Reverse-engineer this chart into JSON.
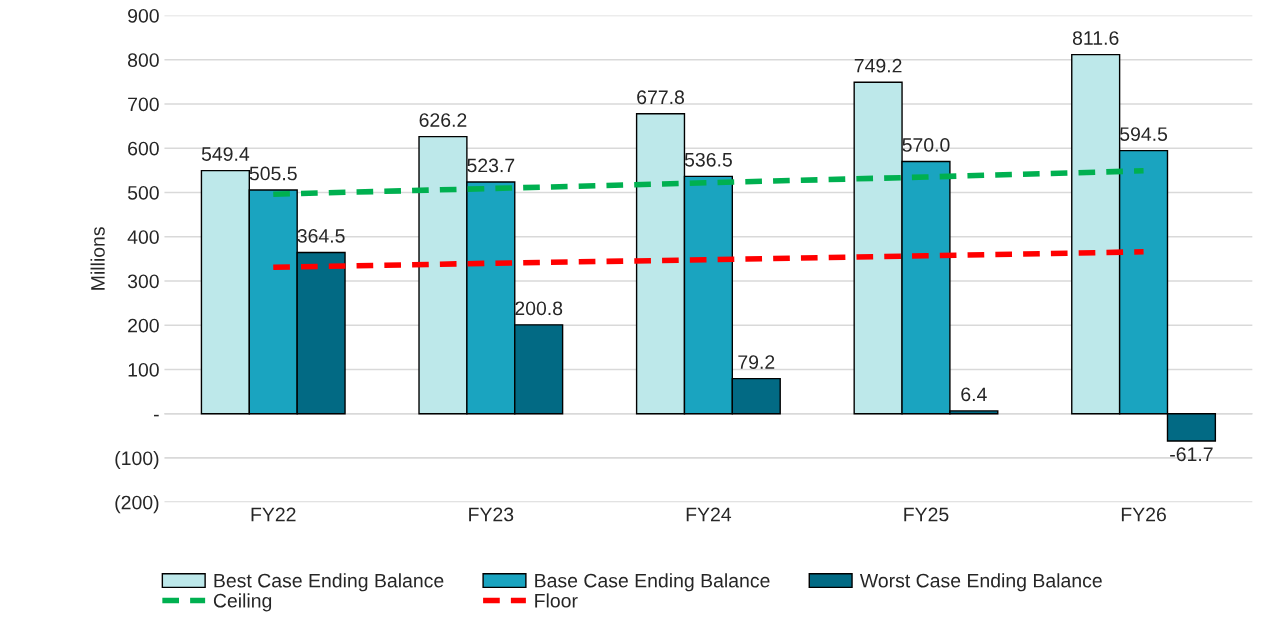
{
  "chart_data": {
    "type": "bar",
    "ylabel": "Millions",
    "categories": [
      "FY22",
      "FY23",
      "FY24",
      "FY25",
      "FY26"
    ],
    "series": [
      {
        "name": "Best Case Ending Balance",
        "color": "#bde8ea",
        "values": [
          549.4,
          626.2,
          677.8,
          749.2,
          811.6
        ],
        "value_labels": [
          "549.4",
          "626.2",
          "677.8",
          "749.2",
          "811.6"
        ]
      },
      {
        "name": "Base Case Ending Balance",
        "color": "#1aa4c0",
        "values": [
          505.5,
          523.7,
          536.5,
          570.0,
          594.5
        ],
        "value_labels": [
          "505.5",
          "523.7",
          "536.5",
          "570.0",
          "594.5"
        ]
      },
      {
        "name": "Worst Case Ending Balance",
        "color": "#026a84",
        "values": [
          364.5,
          200.8,
          79.2,
          6.4,
          -61.7
        ],
        "value_labels": [
          "364.5",
          "200.8",
          "79.2",
          "6.4",
          "-61.7"
        ]
      },
      {
        "name": "Ceiling",
        "type": "line",
        "color": "#00b050",
        "line_style": "dashed",
        "values": [
          496,
          509,
          522,
          535,
          549
        ]
      },
      {
        "name": "Floor",
        "type": "line",
        "color": "#ff0000",
        "line_style": "dashed",
        "values": [
          331,
          340,
          348,
          357,
          366
        ]
      }
    ],
    "ylim": [
      -200,
      900
    ],
    "yticks": [
      {
        "value": -200,
        "label": "(200)"
      },
      {
        "value": -100,
        "label": "(100)"
      },
      {
        "value": 0,
        "label": "-"
      },
      100,
      200,
      300,
      400,
      500,
      600,
      700,
      800,
      900
    ],
    "grid": "y",
    "legend": "bottom"
  }
}
